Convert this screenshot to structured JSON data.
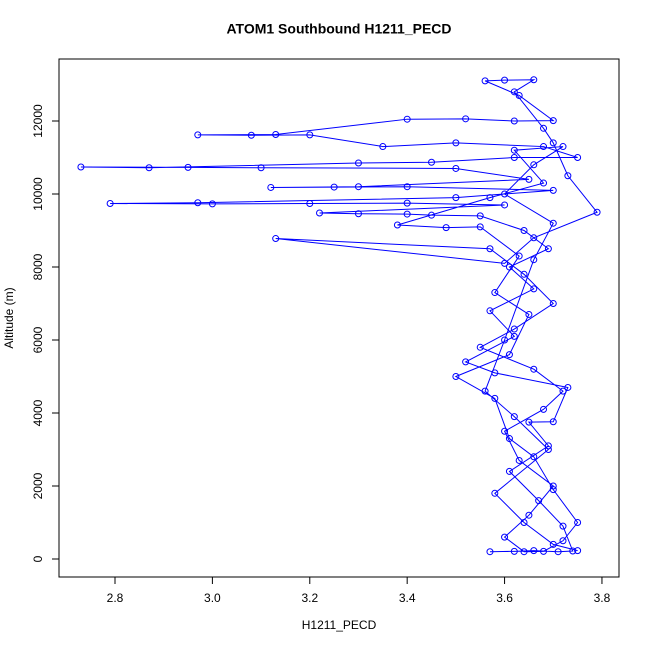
{
  "chart_data": {
    "type": "line",
    "markers": true,
    "title": "ATOM1 Southbound H1211_PECD",
    "x_label": "H1211_PECD",
    "y_label": "Altitude (m)",
    "color": "#0000ff",
    "xlim": [
      2.685,
      3.835
    ],
    "ylim": [
      -493,
      13699
    ],
    "xticks": [
      2.8,
      {
        "value": 3,
        "label": "3.0"
      },
      3.2,
      3.4,
      3.6,
      3.8
    ],
    "yticks": [
      0,
      2000,
      4000,
      6000,
      8000,
      10000,
      12000
    ],
    "x": [
      3.57,
      3.62,
      3.66,
      3.71,
      3.74,
      3.72,
      3.67,
      3.61,
      3.69,
      3.65,
      3.7,
      3.73,
      3.58,
      3.52,
      3.62,
      3.57,
      3.66,
      3.61,
      3.69,
      3.64,
      3.55,
      3.45,
      3.4,
      3.3,
      3.22,
      3.6,
      3.4,
      3.2,
      3.0,
      2.79,
      2.97,
      3.5,
      3.7,
      3.4,
      3.25,
      3.12,
      3.3,
      3.65,
      3.5,
      3.1,
      2.95,
      2.73,
      2.87,
      3.3,
      3.45,
      3.62,
      3.75,
      3.68,
      3.5,
      3.35,
      3.2,
      3.08,
      2.97,
      3.13,
      3.4,
      3.52,
      3.62,
      3.7,
      3.63,
      3.56,
      3.6,
      3.66,
      3.62,
      3.68,
      3.7,
      3.73,
      3.79,
      3.66,
      3.6,
      3.13,
      3.57,
      3.64,
      3.7,
      3.62,
      3.55,
      3.66,
      3.72,
      3.68,
      3.6,
      3.63,
      3.7,
      3.65,
      3.6,
      3.64,
      3.68,
      3.72,
      3.75,
      3.7,
      3.66,
      3.61,
      3.58,
      3.5,
      3.61,
      3.65,
      3.58,
      3.63,
      3.55,
      3.48,
      3.38,
      3.57,
      3.68,
      3.62,
      3.72,
      3.66,
      3.6,
      3.7,
      3.66,
      3.6,
      3.56,
      3.62,
      3.69,
      3.58,
      3.64,
      3.7,
      3.75
    ],
    "values": [
      200,
      210,
      230,
      200,
      220,
      900,
      1600,
      2400,
      3100,
      3750,
      3760,
      4700,
      5100,
      5400,
      6100,
      6800,
      7400,
      8000,
      8500,
      9000,
      9400,
      9420,
      9450,
      9460,
      9480,
      9700,
      9750,
      9740,
      9730,
      9740,
      9760,
      9900,
      10100,
      10200,
      10190,
      10180,
      10200,
      10400,
      10700,
      10720,
      10730,
      10740,
      10720,
      10850,
      10870,
      11000,
      11000,
      11300,
      11400,
      11300,
      11620,
      11610,
      11620,
      11630,
      12050,
      12060,
      12000,
      12010,
      12700,
      13100,
      13120,
      13130,
      12800,
      11800,
      11400,
      10500,
      9500,
      8800,
      8100,
      8780,
      8500,
      7800,
      7000,
      6300,
      5800,
      5200,
      4600,
      4100,
      3500,
      2700,
      2000,
      1200,
      600,
      200,
      210,
      500,
      1000,
      1900,
      2800,
      3300,
      4400,
      5000,
      5600,
      6700,
      7300,
      8300,
      9100,
      9080,
      9150,
      9900,
      10300,
      11200,
      11300,
      10800,
      10000,
      9200,
      8200,
      6000,
      4600,
      3900,
      3000,
      1800,
      1000,
      400,
      230
    ]
  }
}
